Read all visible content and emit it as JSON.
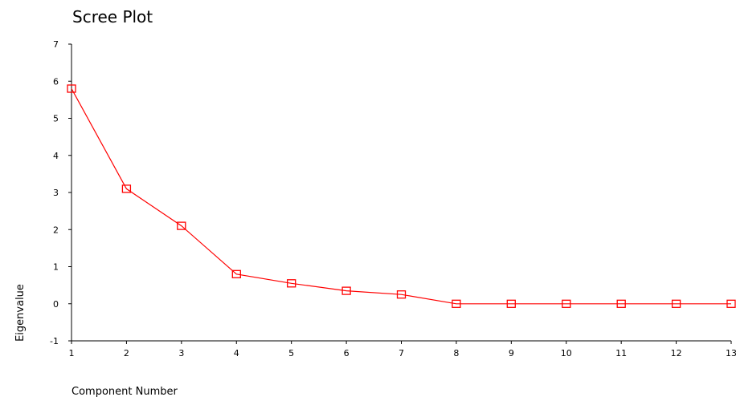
{
  "chart_data": {
    "type": "line",
    "title": "Scree Plot",
    "xlabel": "Component Number",
    "ylabel": "Eigenvalue",
    "x": [
      1,
      2,
      3,
      4,
      5,
      6,
      7,
      8,
      9,
      10,
      11,
      12,
      13
    ],
    "series": [
      {
        "values": [
          5.8,
          3.1,
          2.1,
          0.8,
          0.55,
          0.35,
          0.25,
          0.0,
          0.0,
          0.0,
          0.0,
          0.0,
          0.0
        ],
        "color": "#ff0000",
        "marker": "square-open"
      }
    ],
    "xlim": [
      1,
      13
    ],
    "ylim": [
      -1,
      7
    ],
    "xticks": [
      1,
      2,
      3,
      4,
      5,
      6,
      7,
      8,
      9,
      10,
      11,
      12,
      13
    ],
    "yticks": [
      -1,
      0,
      1,
      2,
      3,
      4,
      5,
      6,
      7
    ],
    "grid": false,
    "legend": "none"
  }
}
